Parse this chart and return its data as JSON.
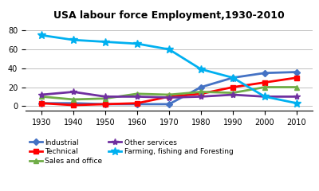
{
  "title": "USA labour force Employment,1930-2010",
  "years": [
    1930,
    1940,
    1950,
    1960,
    1970,
    1980,
    1990,
    2000,
    2010
  ],
  "series": [
    {
      "name": "Industrial",
      "values": [
        3,
        3,
        2,
        2,
        2,
        20,
        30,
        35,
        36
      ],
      "color": "#4472C4",
      "marker": "D",
      "markersize": 4
    },
    {
      "name": "Technical",
      "values": [
        3,
        1,
        2,
        3,
        10,
        13,
        20,
        25,
        30
      ],
      "color": "#FF0000",
      "marker": "s",
      "markersize": 4
    },
    {
      "name": "Sales and office",
      "values": [
        10,
        7,
        8,
        13,
        12,
        15,
        14,
        20,
        20
      ],
      "color": "#70AD47",
      "marker": "^",
      "markersize": 4
    },
    {
      "name": "Other services",
      "values": [
        12,
        15,
        10,
        10,
        9,
        10,
        12,
        10,
        10
      ],
      "color": "#7030A0",
      "marker": "*",
      "markersize": 6
    },
    {
      "name": "Farming, fishing and Foresting",
      "values": [
        75,
        70,
        68,
        66,
        60,
        39,
        30,
        10,
        3
      ],
      "color": "#00B0F0",
      "marker": "*",
      "markersize": 7
    }
  ],
  "ylim": [
    -5,
    88
  ],
  "yticks": [
    0,
    20,
    40,
    60,
    80
  ],
  "bg_color": "#FFFFFF",
  "grid_color": "#C0C0C0",
  "title_fontsize": 9,
  "tick_fontsize": 7,
  "legend_fontsize": 6.5,
  "linewidth": 2.0
}
